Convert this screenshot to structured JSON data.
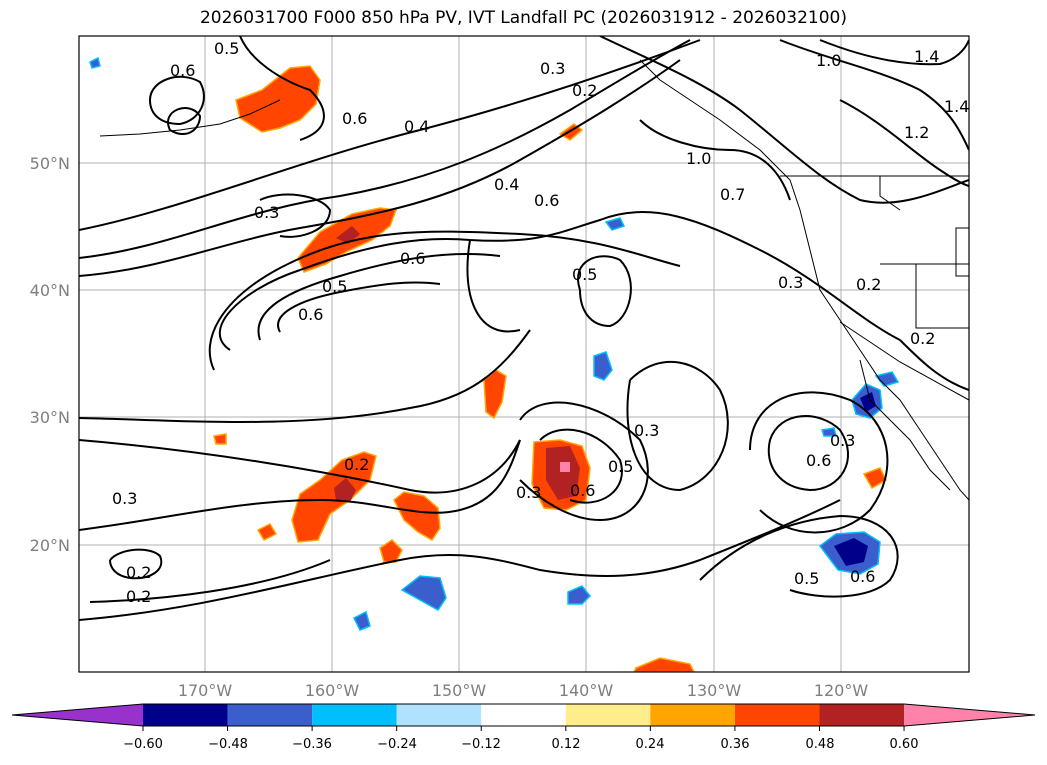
{
  "title": "2026031700 F000 850 hPa PV, IVT Landfall PC (2026031912 - 2026032100)",
  "lat_labels": [
    "50°N",
    "40°N",
    "30°N",
    "20°N"
  ],
  "lon_labels": [
    "170°W",
    "160°W",
    "150°W",
    "140°W",
    "130°W",
    "120°W"
  ],
  "contour_labels": [
    "0.5",
    "0.6",
    "0.3",
    "0.2",
    "0.6",
    "0.4",
    "0.4",
    "0.6",
    "1.0",
    "1.0",
    "1.2",
    "1.4",
    "0.7",
    "0.3",
    "0.6",
    "0.5",
    "0.6",
    "0.5",
    "0.3",
    "0.2",
    "0.2",
    "0.3",
    "0.5",
    "0.6",
    "0.3",
    "0.6",
    "0.2",
    "0.3",
    "0.2",
    "0.2",
    "0.5",
    "0.6",
    "1.4",
    "0.3"
  ],
  "colorbar": {
    "ticks": [
      "−0.60",
      "−0.48",
      "−0.36",
      "−0.24",
      "−0.12",
      "0.12",
      "0.24",
      "0.36",
      "0.48",
      "0.60"
    ],
    "colors": [
      "#9932cc",
      "#00008b",
      "#3a5fcd",
      "#00bfff",
      "#b0e2ff",
      "#ffffff",
      "#ffec8b",
      "#ffa500",
      "#ff4500",
      "#b22222",
      "#ff82ab"
    ]
  }
}
